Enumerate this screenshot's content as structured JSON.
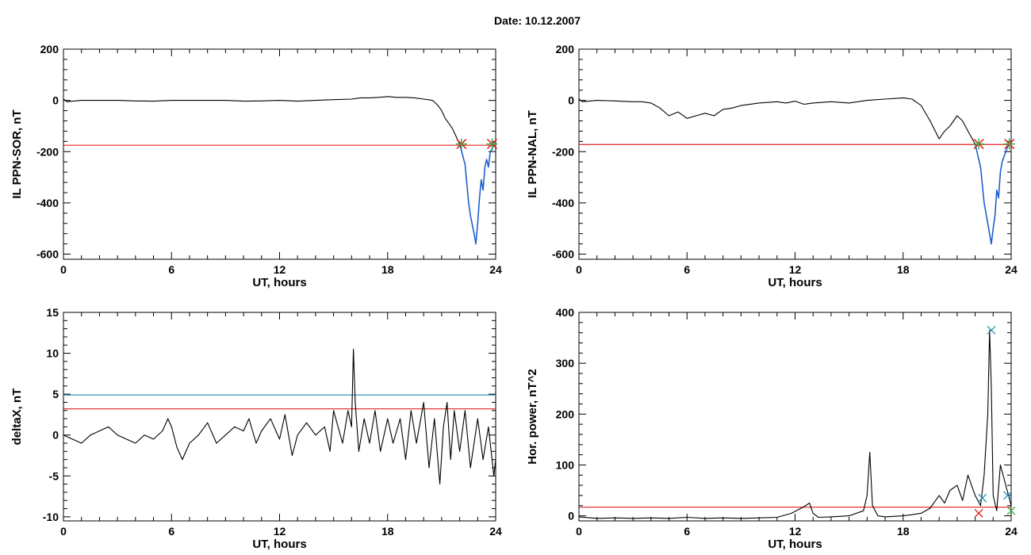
{
  "title": "Date:  10.12.2007",
  "colors": {
    "trace": "#000000",
    "threshold_red": "#e02020",
    "threshold_blue": "#1f8fb3",
    "highlight_blue": "#1f5fd0",
    "marker_green": "#3cb043",
    "marker_red": "#e02020",
    "marker_blue": "#1f8fb3"
  },
  "chart_data": [
    {
      "type": "line",
      "xlabel": "UT, hours",
      "ylabel": "IL PPN-SOR, nT",
      "xlim": [
        0,
        24
      ],
      "ylim": [
        -620,
        200
      ],
      "xticks": [
        0,
        6,
        12,
        18,
        24
      ],
      "yticks": [
        -600,
        -400,
        -200,
        0,
        200
      ],
      "thresholds": [
        {
          "y": -175,
          "color": "red"
        }
      ],
      "series": [
        {
          "values_x": [
            0,
            0.2,
            1,
            2,
            3,
            4,
            5,
            6,
            7,
            8,
            9,
            10,
            11,
            12,
            13,
            14,
            15,
            16,
            16.5,
            17,
            17.5,
            18,
            18.5,
            19,
            19.5,
            20,
            20.5,
            20.8,
            21,
            21.2,
            21.4,
            21.6,
            21.8,
            22.0
          ],
          "values_y": [
            5,
            -5,
            0,
            0,
            0,
            -2,
            -3,
            0,
            0,
            0,
            0,
            -3,
            -2,
            0,
            -3,
            0,
            3,
            5,
            10,
            10,
            12,
            15,
            12,
            12,
            10,
            5,
            0,
            -20,
            -40,
            -70,
            -90,
            -110,
            -140,
            -170
          ]
        },
        {
          "highlight": true,
          "values_x": [
            22.0,
            22.3,
            22.5,
            22.6,
            22.8,
            22.9,
            23.0,
            23.1,
            23.2,
            23.3,
            23.4,
            23.5,
            23.6,
            23.7,
            23.8,
            23.9,
            24.0
          ],
          "values_y": [
            -170,
            -250,
            -400,
            -450,
            -520,
            -560,
            -480,
            -380,
            -310,
            -350,
            -260,
            -230,
            -260,
            -200,
            -190,
            -170,
            -165
          ]
        }
      ],
      "markers": [
        {
          "x": 22.1,
          "y": -170
        },
        {
          "x": 23.8,
          "y": -170
        }
      ]
    },
    {
      "type": "line",
      "xlabel": "UT, hours",
      "ylabel": "IL PPN-NAL, nT",
      "xlim": [
        0,
        24
      ],
      "ylim": [
        -620,
        200
      ],
      "xticks": [
        0,
        6,
        12,
        18,
        24
      ],
      "yticks": [
        -600,
        -400,
        -200,
        0,
        200
      ],
      "thresholds": [
        {
          "y": -172,
          "color": "red"
        }
      ],
      "series": [
        {
          "values_x": [
            0,
            0.2,
            1,
            2,
            3,
            3.5,
            4,
            4.5,
            5,
            5.5,
            6,
            6.5,
            7,
            7.5,
            8,
            8.5,
            9,
            10,
            11,
            11.5,
            12,
            12.5,
            13,
            14,
            15,
            16,
            17,
            18,
            18.5,
            19,
            19.5,
            20,
            20.3,
            20.6,
            21,
            21.3,
            21.6,
            22.0
          ],
          "values_y": [
            5,
            -5,
            0,
            -2,
            -5,
            -5,
            -10,
            -30,
            -60,
            -45,
            -70,
            -60,
            -50,
            -60,
            -35,
            -30,
            -20,
            -10,
            -5,
            -10,
            -3,
            -15,
            -10,
            -5,
            -10,
            0,
            5,
            10,
            5,
            -20,
            -80,
            -150,
            -120,
            -100,
            -60,
            -80,
            -120,
            -170
          ]
        },
        {
          "highlight": true,
          "values_x": [
            22.0,
            22.3,
            22.5,
            22.7,
            22.9,
            23.0,
            23.1,
            23.2,
            23.3,
            23.4,
            23.5,
            23.6,
            23.7,
            23.8,
            24.0
          ],
          "values_y": [
            -170,
            -260,
            -400,
            -480,
            -560,
            -500,
            -450,
            -350,
            -380,
            -280,
            -240,
            -220,
            -200,
            -180,
            -170
          ]
        }
      ],
      "markers": [
        {
          "x": 22.2,
          "y": -170
        },
        {
          "x": 23.9,
          "y": -170
        }
      ]
    },
    {
      "type": "line",
      "xlabel": "UT, hours",
      "ylabel": "deltaX, nT",
      "xlim": [
        0,
        24
      ],
      "ylim": [
        -10.5,
        15
      ],
      "xticks": [
        0,
        6,
        12,
        18,
        24
      ],
      "yticks": [
        -10,
        -5,
        0,
        5,
        10,
        15
      ],
      "thresholds": [
        {
          "y": 4.9,
          "color": "blue"
        },
        {
          "y": 3.2,
          "color": "red"
        }
      ],
      "series": [
        {
          "values_x": [
            0,
            0.5,
            1,
            1.5,
            2,
            2.5,
            3,
            3.5,
            4,
            4.5,
            5,
            5.5,
            5.8,
            6.0,
            6.3,
            6.6,
            7,
            7.5,
            8,
            8.5,
            9,
            9.5,
            10,
            10.3,
            10.7,
            11,
            11.5,
            12,
            12.3,
            12.7,
            13,
            13.5,
            14,
            14.5,
            14.8,
            15.0,
            15.5,
            15.8,
            16.0,
            16.1,
            16.2,
            16.4,
            16.7,
            17,
            17.3,
            17.6,
            18,
            18.3,
            18.7,
            19,
            19.3,
            19.6,
            20,
            20.3,
            20.6,
            20.9,
            21.1,
            21.3,
            21.5,
            21.7,
            22,
            22.3,
            22.6,
            23,
            23.3,
            23.6,
            23.9,
            24
          ],
          "values_y": [
            0,
            -0.5,
            -1,
            0,
            0.5,
            1,
            0,
            -0.5,
            -1,
            0,
            -0.5,
            0.5,
            2,
            1,
            -1.5,
            -3,
            -1,
            0,
            1.5,
            -1,
            0,
            1,
            0.5,
            2,
            -1,
            0.5,
            2,
            -0.5,
            2.5,
            -2.5,
            0,
            1.5,
            0,
            1,
            -2,
            3,
            -1,
            3,
            1,
            10.5,
            4,
            -2,
            2,
            -1,
            3,
            -2,
            2,
            -1,
            2,
            -3,
            3,
            -1,
            4,
            -4,
            2,
            -6,
            1,
            4,
            -3,
            3,
            -2,
            3,
            -4,
            2,
            -3,
            1,
            -5,
            -3
          ]
        }
      ]
    },
    {
      "type": "line",
      "xlabel": "UT, hours",
      "ylabel": "Hor. power, nT^2",
      "xlim": [
        0,
        24
      ],
      "ylim": [
        -10,
        400
      ],
      "xticks": [
        0,
        6,
        12,
        18,
        24
      ],
      "yticks": [
        0,
        100,
        200,
        300,
        400
      ],
      "thresholds": [
        {
          "y": 17,
          "color": "red"
        }
      ],
      "series": [
        {
          "values_x": [
            0,
            1,
            2,
            3,
            4,
            5,
            6,
            7,
            8,
            9,
            10,
            11,
            11.8,
            12.5,
            12.8,
            13.0,
            13.3,
            14,
            15,
            15.8,
            16.0,
            16.15,
            16.3,
            16.6,
            17,
            18,
            19,
            19.5,
            20,
            20.3,
            20.6,
            21,
            21.3,
            21.6,
            22,
            22.3,
            22.5,
            22.7,
            22.8,
            22.9,
            23.0,
            23.2,
            23.4,
            23.7,
            24
          ],
          "values_y": [
            -2,
            -5,
            -4,
            -5,
            -4,
            -5,
            -3,
            -5,
            -4,
            -5,
            -4,
            -3,
            5,
            18,
            25,
            5,
            -3,
            -2,
            0,
            10,
            40,
            125,
            20,
            0,
            -2,
            0,
            5,
            15,
            40,
            25,
            50,
            60,
            30,
            80,
            40,
            20,
            80,
            200,
            365,
            250,
            40,
            10,
            100,
            60,
            20
          ]
        }
      ],
      "markers": [
        {
          "x": 22.2,
          "y": 5,
          "color": "red"
        },
        {
          "x": 22.4,
          "y": 35,
          "color": "blue"
        },
        {
          "x": 22.9,
          "y": 365,
          "color": "blue"
        },
        {
          "x": 23.8,
          "y": 40,
          "color": "blue"
        },
        {
          "x": 24.0,
          "y": 10,
          "color": "green"
        }
      ]
    }
  ]
}
